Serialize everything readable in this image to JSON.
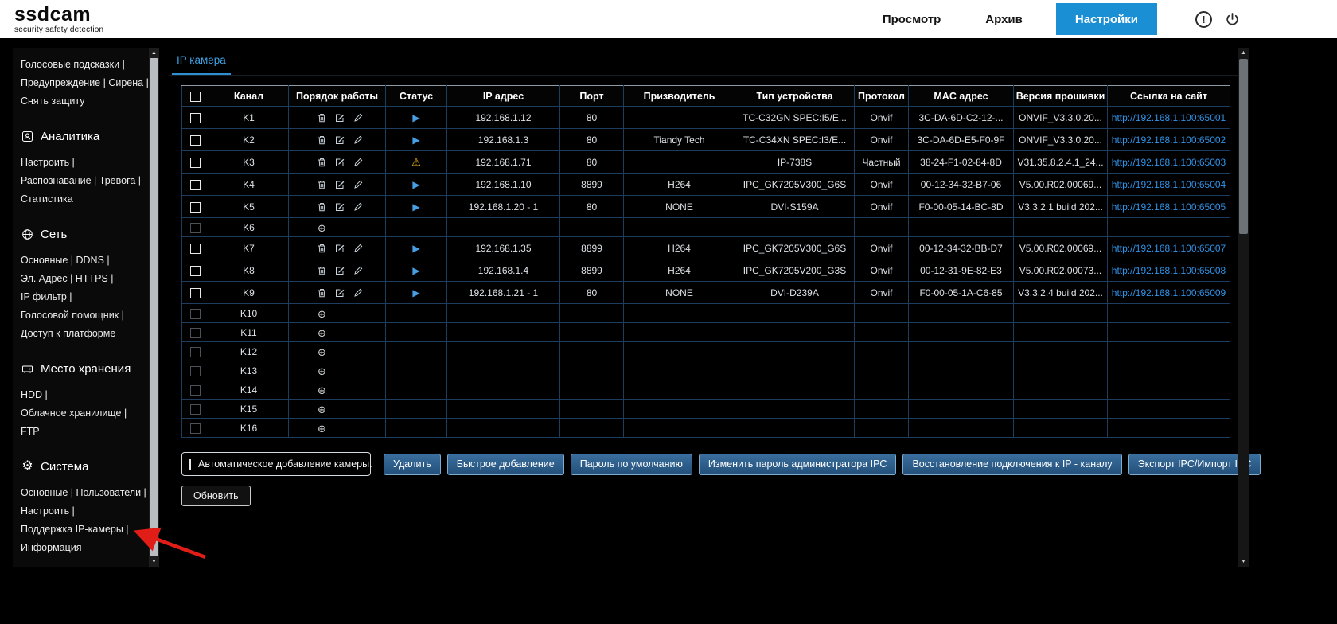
{
  "header": {
    "logo": "ssdcam",
    "tagline": "security safety detection",
    "nav": [
      {
        "label": "Просмотр",
        "active": false
      },
      {
        "label": "Архив",
        "active": false
      },
      {
        "label": "Настройки",
        "active": true
      }
    ],
    "alert_icon_glyph": "!"
  },
  "sidebar": {
    "groups": [
      {
        "title": "",
        "icon": "",
        "items": [
          "Голосовые подсказки |",
          "Предупреждение | Сирена |",
          "Снять защиту"
        ]
      },
      {
        "title": "Аналитика",
        "icon": "face",
        "items": [
          "Настроить |",
          "Распознавание | Тревога |",
          "Статистика"
        ]
      },
      {
        "title": "Сеть",
        "icon": "globe",
        "items": [
          "Основные | DDNS |",
          "Эл. Адрес | HTTPS |",
          "IP фильтр |",
          "Голосовой помощник |",
          "Доступ к платформе"
        ]
      },
      {
        "title": "Место хранения",
        "icon": "storage",
        "items": [
          "HDD |",
          "Облачное хранилище |",
          "FTP"
        ]
      },
      {
        "title": "Система",
        "icon": "gear",
        "items": [
          "Основные | Пользователи |",
          "Настроить |",
          "Поддержка IP-камеры |",
          "Информация"
        ]
      }
    ]
  },
  "main": {
    "tab": "IP камера",
    "table": {
      "columns": [
        "Канал",
        "Порядок работы",
        "Статус",
        "IP адрес",
        "Порт",
        "Призводитель",
        "Тип устройства",
        "Протокол",
        "MAC адрес",
        "Версия прошивки",
        "Ссылка на сайт"
      ],
      "rows": [
        {
          "channel": "K1",
          "actions": "edit",
          "status": "play",
          "ip": "192.168.1.12",
          "port": "80",
          "manufacturer": "",
          "device_type": "TC-C32GN SPEC:I5/E...",
          "protocol": "Onvif",
          "mac": "3C-DA-6D-C2-12-...",
          "firmware": "ONVIF_V3.3.0.20...",
          "url": "http://192.168.1.100:65001"
        },
        {
          "channel": "K2",
          "actions": "edit",
          "status": "play",
          "ip": "192.168.1.3",
          "port": "80",
          "manufacturer": "Tiandy Tech",
          "device_type": "TC-C34XN SPEC:I3/E...",
          "protocol": "Onvif",
          "mac": "3C-DA-6D-E5-F0-9F",
          "firmware": "ONVIF_V3.3.0.20...",
          "url": "http://192.168.1.100:65002"
        },
        {
          "channel": "K3",
          "actions": "edit",
          "status": "warning",
          "ip": "192.168.1.71",
          "port": "80",
          "manufacturer": "",
          "device_type": "IP-738S",
          "protocol": "Частный",
          "mac": "38-24-F1-02-84-8D",
          "firmware": "V31.35.8.2.4.1_24...",
          "url": "http://192.168.1.100:65003"
        },
        {
          "channel": "K4",
          "actions": "edit",
          "status": "play",
          "ip": "192.168.1.10",
          "port": "8899",
          "manufacturer": "H264",
          "device_type": "IPC_GK7205V300_G6S",
          "protocol": "Onvif",
          "mac": "00-12-34-32-B7-06",
          "firmware": "V5.00.R02.00069...",
          "url": "http://192.168.1.100:65004"
        },
        {
          "channel": "K5",
          "actions": "edit",
          "status": "play",
          "ip": "192.168.1.20 - 1",
          "port": "80",
          "manufacturer": "NONE",
          "device_type": "DVI-S159A",
          "protocol": "Onvif",
          "mac": "F0-00-05-14-BC-8D",
          "firmware": "V3.3.2.1 build 202...",
          "url": "http://192.168.1.100:65005"
        },
        {
          "channel": "K6",
          "actions": "add",
          "status": "",
          "ip": "",
          "port": "",
          "manufacturer": "",
          "device_type": "",
          "protocol": "",
          "mac": "",
          "firmware": "",
          "url": ""
        },
        {
          "channel": "K7",
          "actions": "edit",
          "status": "play",
          "ip": "192.168.1.35",
          "port": "8899",
          "manufacturer": "H264",
          "device_type": "IPC_GK7205V300_G6S",
          "protocol": "Onvif",
          "mac": "00-12-34-32-BB-D7",
          "firmware": "V5.00.R02.00069...",
          "url": "http://192.168.1.100:65007"
        },
        {
          "channel": "K8",
          "actions": "edit",
          "status": "play",
          "ip": "192.168.1.4",
          "port": "8899",
          "manufacturer": "H264",
          "device_type": "IPC_GK7205V200_G3S",
          "protocol": "Onvif",
          "mac": "00-12-31-9E-82-E3",
          "firmware": "V5.00.R02.00073...",
          "url": "http://192.168.1.100:65008"
        },
        {
          "channel": "K9",
          "actions": "edit",
          "status": "play",
          "ip": "192.168.1.21 - 1",
          "port": "80",
          "manufacturer": "NONE",
          "device_type": "DVI-D239A",
          "protocol": "Onvif",
          "mac": "F0-00-05-1A-C6-85",
          "firmware": "V3.3.2.4 build 202...",
          "url": "http://192.168.1.100:65009"
        },
        {
          "channel": "K10",
          "actions": "add",
          "status": "",
          "ip": "",
          "port": "",
          "manufacturer": "",
          "device_type": "",
          "protocol": "",
          "mac": "",
          "firmware": "",
          "url": ""
        },
        {
          "channel": "K11",
          "actions": "add",
          "status": "",
          "ip": "",
          "port": "",
          "manufacturer": "",
          "device_type": "",
          "protocol": "",
          "mac": "",
          "firmware": "",
          "url": ""
        },
        {
          "channel": "K12",
          "actions": "add",
          "status": "",
          "ip": "",
          "port": "",
          "manufacturer": "",
          "device_type": "",
          "protocol": "",
          "mac": "",
          "firmware": "",
          "url": ""
        },
        {
          "channel": "K13",
          "actions": "add",
          "status": "",
          "ip": "",
          "port": "",
          "manufacturer": "",
          "device_type": "",
          "protocol": "",
          "mac": "",
          "firmware": "",
          "url": ""
        },
        {
          "channel": "K14",
          "actions": "add",
          "status": "",
          "ip": "",
          "port": "",
          "manufacturer": "",
          "device_type": "",
          "protocol": "",
          "mac": "",
          "firmware": "",
          "url": ""
        },
        {
          "channel": "K15",
          "actions": "add",
          "status": "",
          "ip": "",
          "port": "",
          "manufacturer": "",
          "device_type": "",
          "protocol": "",
          "mac": "",
          "firmware": "",
          "url": ""
        },
        {
          "channel": "K16",
          "actions": "add",
          "status": "",
          "ip": "",
          "port": "",
          "manufacturer": "",
          "device_type": "",
          "protocol": "",
          "mac": "",
          "firmware": "",
          "url": ""
        }
      ]
    },
    "auto_add_label": "Автоматическое добавление камеры.",
    "buttons": [
      "Удалить",
      "Быстрое добавление",
      "Пароль по умолчанию",
      "Изменить пароль администратора IPC",
      "Восстановление подключения к IP - каналу",
      "Экспорт IPC/Импорт IPC"
    ],
    "refresh_label": "Обновить"
  },
  "icons": {
    "play": "▶",
    "warning": "⚠",
    "add": "⊕",
    "gear": "⚙",
    "up_arrow": "▲",
    "down_arrow": "▼"
  },
  "colors": {
    "accent_blue": "#1b8fd4",
    "link_blue": "#2f93e8",
    "table_border": "#1c3d5e",
    "warning_yellow": "#f2b60e",
    "annotation_red": "#e01e17"
  }
}
